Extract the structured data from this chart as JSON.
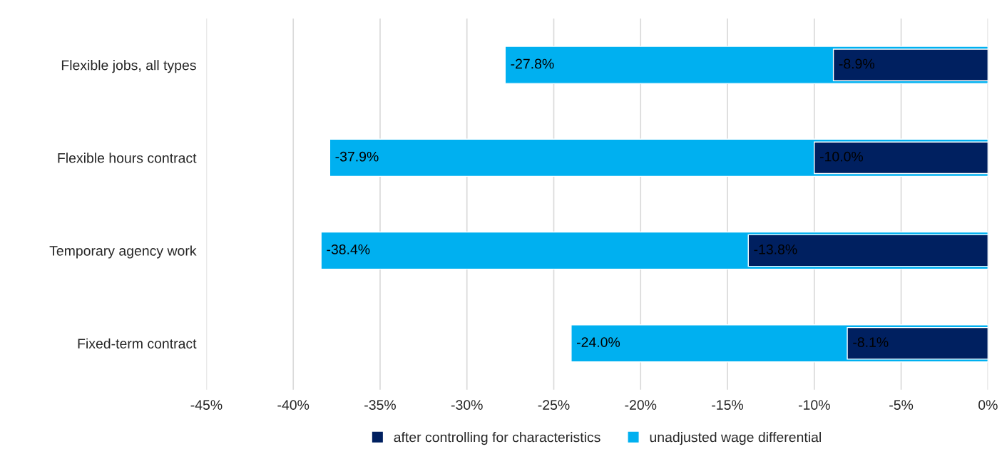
{
  "chart_data": {
    "type": "bar",
    "orientation": "horizontal",
    "categories": [
      "Flexible jobs, all types",
      "Flexible hours contract",
      "Temporary agency work",
      "Fixed-term contract"
    ],
    "series": [
      {
        "name": "after controlling for characteristics",
        "color": "#002060",
        "values": [
          -8.9,
          -10.0,
          -13.8,
          -8.1
        ],
        "value_labels": [
          "-8.9%",
          "-10.0%",
          "-13.8%",
          "-8.1%"
        ]
      },
      {
        "name": "unadjusted wage differential",
        "color": "#00b0f0",
        "values": [
          -27.8,
          -37.9,
          -38.4,
          -24.0
        ],
        "value_labels": [
          "-27.8%",
          "-37.9%",
          "-38.4%",
          "-24.0%"
        ]
      }
    ],
    "xlim": [
      -45,
      0
    ],
    "xticks": [
      {
        "value": -45,
        "label": "-45%"
      },
      {
        "value": -40,
        "label": "-40%"
      },
      {
        "value": -35,
        "label": "-35%"
      },
      {
        "value": -30,
        "label": "-30%"
      },
      {
        "value": -25,
        "label": "-25%"
      },
      {
        "value": -20,
        "label": "-20%"
      },
      {
        "value": -15,
        "label": "-15%"
      },
      {
        "value": -10,
        "label": "-10%"
      },
      {
        "value": -5,
        "label": "-5%"
      },
      {
        "value": 0,
        "label": "0%"
      }
    ],
    "grid": "x",
    "legend": "bottom"
  }
}
